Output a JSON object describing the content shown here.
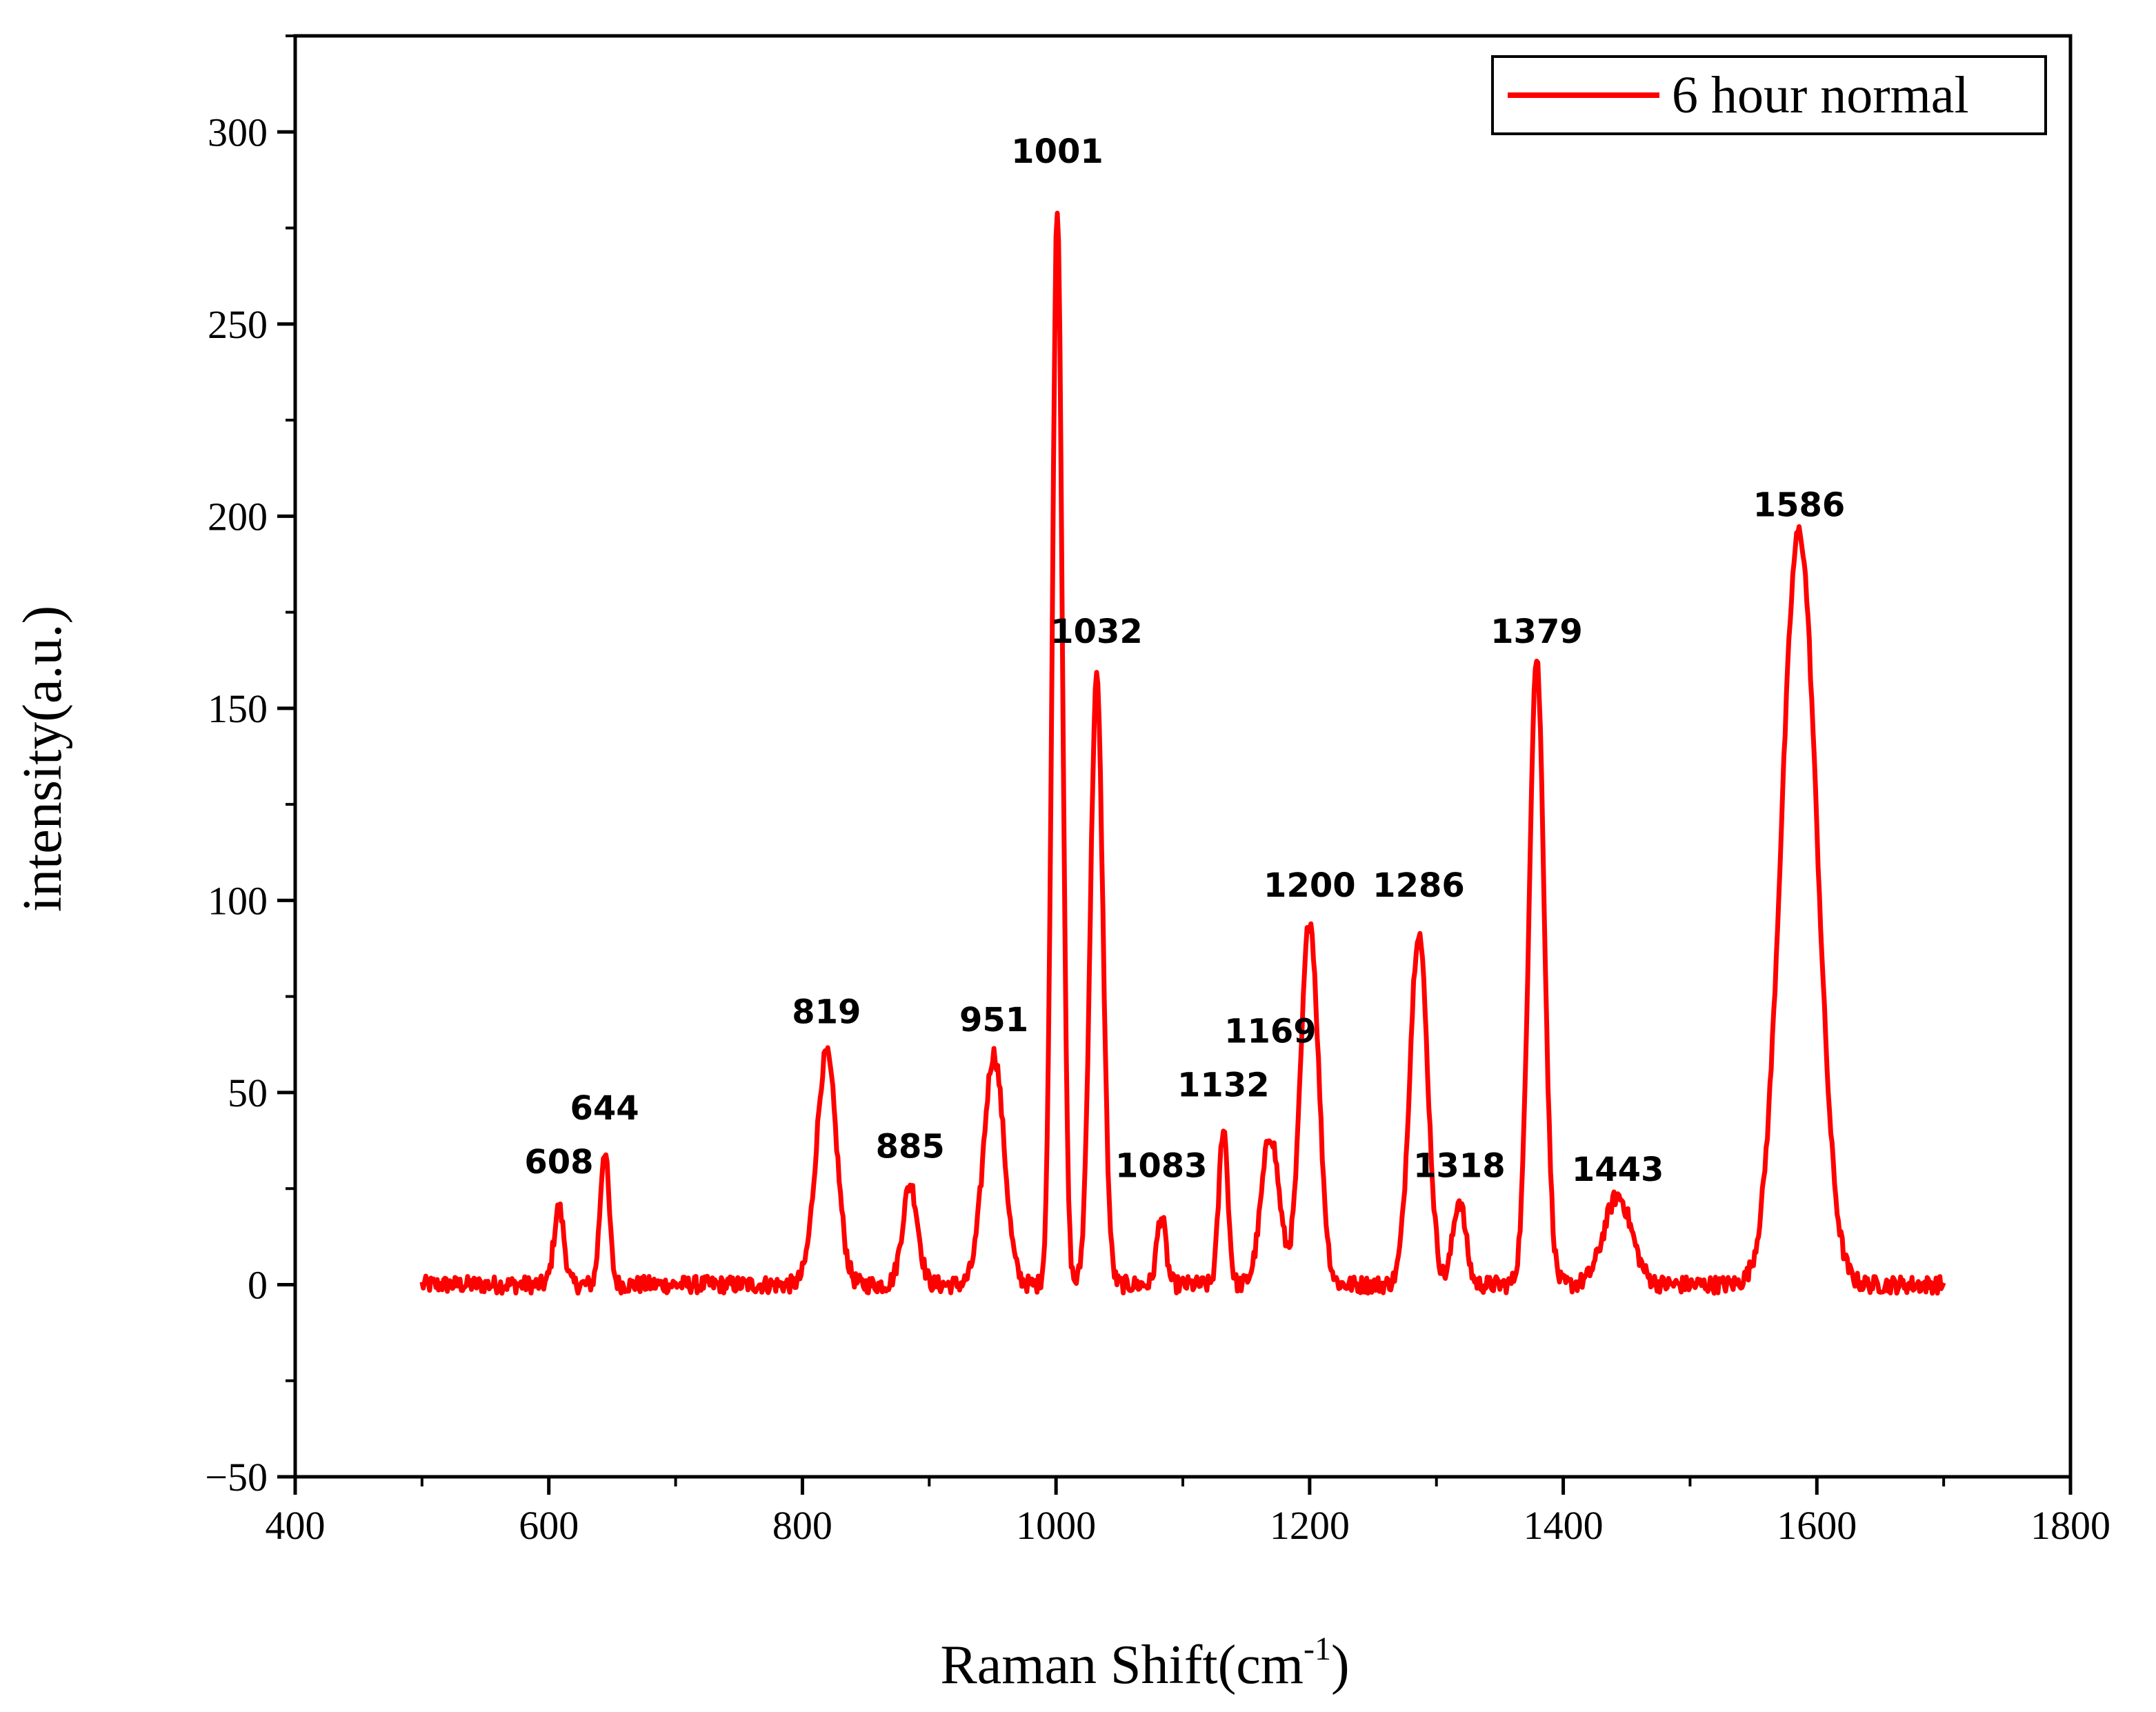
{
  "chart_data": {
    "type": "line",
    "title": "",
    "xlabel": "Raman Shift(cm",
    "xlabel_sup": "-1",
    "xlabel_close": ")",
    "ylabel": "intensity(a.u.)",
    "xlim": [
      400,
      1800
    ],
    "ylim": [
      -50,
      325
    ],
    "xticks": [
      400,
      600,
      800,
      1000,
      1200,
      1400,
      1600,
      1800
    ],
    "yticks": [
      -50,
      0,
      50,
      100,
      150,
      200,
      250,
      300
    ],
    "grid": false,
    "legend_position": "top-right",
    "series": [
      {
        "name": "6 hour normal",
        "color": "#ff0000",
        "x_start": 500,
        "x_end": 1700,
        "baseline": 0,
        "peaks": [
          {
            "x": 608,
            "y": 20,
            "width": 4
          },
          {
            "x": 644,
            "y": 35,
            "width": 3.5
          },
          {
            "x": 819,
            "y": 60,
            "width": 8
          },
          {
            "x": 885,
            "y": 26,
            "width": 6
          },
          {
            "x": 951,
            "y": 60,
            "width": 8
          },
          {
            "x": 1001,
            "y": 281,
            "width": 4
          },
          {
            "x": 1032,
            "y": 158,
            "width": 5
          },
          {
            "x": 1083,
            "y": 18,
            "width": 3.5
          },
          {
            "x": 1132,
            "y": 41,
            "width": 3.5
          },
          {
            "x": 1169,
            "y": 39,
            "width": 7
          },
          {
            "x": 1200,
            "y": 95,
            "width": 7
          },
          {
            "x": 1286,
            "y": 92,
            "width": 7
          },
          {
            "x": 1318,
            "y": 22,
            "width": 5
          },
          {
            "x": 1379,
            "y": 163,
            "width": 6
          },
          {
            "x": 1443,
            "y": 23,
            "width": 11
          },
          {
            "x": 1586,
            "y": 196,
            "width": 14
          }
        ]
      }
    ],
    "annotations": [
      {
        "text": "608",
        "x": 608,
        "y": 29
      },
      {
        "text": "644",
        "x": 644,
        "y": 43
      },
      {
        "text": "819",
        "x": 819,
        "y": 68
      },
      {
        "text": "885",
        "x": 885,
        "y": 33
      },
      {
        "text": "951",
        "x": 951,
        "y": 66
      },
      {
        "text": "1001",
        "x": 1001,
        "y": 292
      },
      {
        "text": "1032",
        "x": 1032,
        "y": 167
      },
      {
        "text": "1083",
        "x": 1083,
        "y": 28
      },
      {
        "text": "1132",
        "x": 1132,
        "y": 49
      },
      {
        "text": "1169",
        "x": 1169,
        "y": 63
      },
      {
        "text": "1200",
        "x": 1200,
        "y": 101
      },
      {
        "text": "1286",
        "x": 1286,
        "y": 101
      },
      {
        "text": "1318",
        "x": 1318,
        "y": 28
      },
      {
        "text": "1379",
        "x": 1379,
        "y": 167
      },
      {
        "text": "1443",
        "x": 1443,
        "y": 27
      },
      {
        "text": "1586",
        "x": 1586,
        "y": 200
      }
    ]
  }
}
